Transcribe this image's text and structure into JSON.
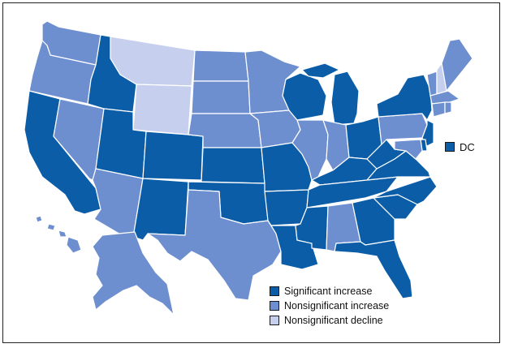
{
  "colors": {
    "significant_increase": "#0b5da8",
    "nonsignificant_increase": "#6e8fcf",
    "nonsignificant_decline": "#c6d0ee",
    "border": "#ffffff"
  },
  "legend": [
    {
      "key": "significant_increase",
      "label": "Significant increase"
    },
    {
      "key": "nonsignificant_increase",
      "label": "Nonsignificant increase"
    },
    {
      "key": "nonsignificant_decline",
      "label": "Nonsignificant decline"
    }
  ],
  "dc": {
    "label": "DC",
    "category": "significant_increase"
  },
  "states": {
    "WA": "nonsignificant_increase",
    "OR": "nonsignificant_increase",
    "CA": "significant_increase",
    "NV": "nonsignificant_increase",
    "ID": "significant_increase",
    "MT": "nonsignificant_decline",
    "WY": "nonsignificant_decline",
    "UT": "significant_increase",
    "AZ": "nonsignificant_increase",
    "CO": "significant_increase",
    "NM": "significant_increase",
    "ND": "nonsignificant_increase",
    "SD": "nonsignificant_increase",
    "NE": "nonsignificant_increase",
    "KS": "significant_increase",
    "OK": "significant_increase",
    "TX": "nonsignificant_increase",
    "MN": "nonsignificant_increase",
    "IA": "nonsignificant_increase",
    "MO": "significant_increase",
    "AR": "significant_increase",
    "LA": "significant_increase",
    "WI": "significant_increase",
    "IL": "nonsignificant_increase",
    "MI": "significant_increase",
    "IN": "nonsignificant_increase",
    "OH": "significant_increase",
    "KY": "significant_increase",
    "TN": "significant_increase",
    "MS": "significant_increase",
    "AL": "nonsignificant_increase",
    "GA": "significant_increase",
    "FL": "significant_increase",
    "SC": "significant_increase",
    "NC": "significant_increase",
    "VA": "significant_increase",
    "WV": "significant_increase",
    "PA": "nonsignificant_increase",
    "NY": "significant_increase",
    "VT": "nonsignificant_increase",
    "NH": "nonsignificant_decline",
    "ME": "nonsignificant_increase",
    "MA": "nonsignificant_increase",
    "CT": "nonsignificant_increase",
    "RI": "nonsignificant_increase",
    "NJ": "significant_increase",
    "DE": "significant_increase",
    "MD": "nonsignificant_increase",
    "AK": "nonsignificant_increase",
    "HI": "nonsignificant_increase"
  }
}
